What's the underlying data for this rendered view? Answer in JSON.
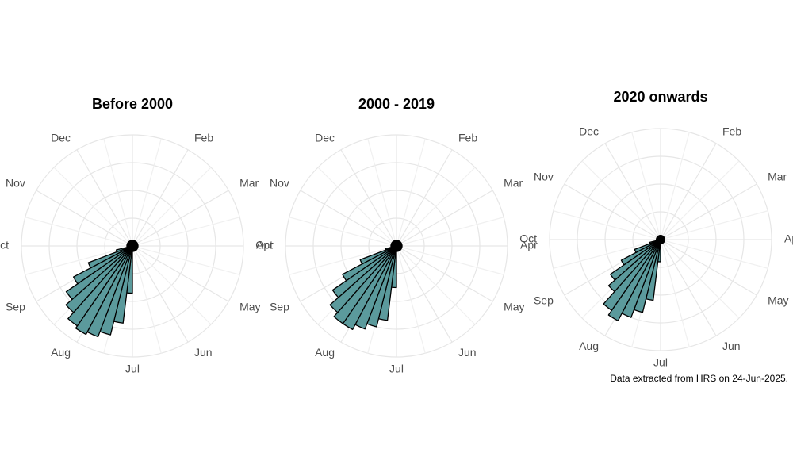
{
  "chart_data": [
    {
      "type": "polar_bar",
      "title": "Before 2000",
      "color": "#5b9a9c",
      "x": [
        1,
        2,
        3,
        4,
        5,
        6,
        7,
        8,
        9,
        10,
        11,
        12,
        13,
        14,
        15,
        16,
        17,
        18,
        19,
        20,
        21,
        22,
        23,
        24,
        25,
        26,
        27,
        28,
        29,
        30,
        31,
        32,
        33,
        34,
        35,
        36,
        37,
        38,
        39,
        40,
        41,
        42,
        43,
        44,
        45,
        46,
        47,
        48,
        49,
        50,
        51,
        52
      ],
      "values": [
        2,
        2,
        2,
        2,
        2,
        2,
        2,
        2,
        2,
        2,
        2,
        2,
        2,
        2,
        2,
        2,
        2,
        2,
        2,
        2,
        2,
        2,
        2,
        2,
        2,
        2,
        17,
        28,
        33,
        35,
        36,
        35,
        32,
        29,
        24,
        17,
        6,
        2,
        2,
        2,
        2,
        2,
        2,
        2,
        2,
        2,
        2,
        2,
        2,
        2,
        2,
        2
      ],
      "xlim": [
        0.5,
        52.5
      ],
      "ylim": [
        0,
        40
      ],
      "yticks": [
        10,
        20,
        30,
        40
      ],
      "grid": true,
      "month_labels": [
        null,
        "Feb",
        "Mar",
        "Apr",
        "May",
        "Jun",
        "Jul",
        "Aug",
        "Sep",
        "Oct",
        "Nov",
        "Dec"
      ]
    },
    {
      "type": "polar_bar",
      "title": "2000 - 2019",
      "color": "#5b9a9c",
      "x": [
        1,
        2,
        3,
        4,
        5,
        6,
        7,
        8,
        9,
        10,
        11,
        12,
        13,
        14,
        15,
        16,
        17,
        18,
        19,
        20,
        21,
        22,
        23,
        24,
        25,
        26,
        27,
        28,
        29,
        30,
        31,
        32,
        33,
        34,
        35,
        36,
        37,
        38,
        39,
        40,
        41,
        42,
        43,
        44,
        45,
        46,
        47,
        48,
        49,
        50,
        51,
        52
      ],
      "values": [
        2,
        2,
        2,
        2,
        2,
        2,
        2,
        2,
        2,
        2,
        2,
        2,
        2,
        2,
        2,
        2,
        2,
        2,
        2,
        2,
        2,
        2,
        2,
        2,
        2,
        2,
        15,
        27,
        30,
        32,
        34,
        34,
        32,
        28,
        22,
        14,
        4,
        2,
        2,
        2,
        2,
        2,
        2,
        2,
        2,
        2,
        2,
        2,
        2,
        2,
        2,
        2
      ],
      "xlim": [
        0.5,
        52.5
      ],
      "ylim": [
        0,
        40
      ],
      "yticks": [
        10,
        20,
        30,
        40
      ],
      "grid": true,
      "month_labels": [
        null,
        "Feb",
        "Mar",
        "Apr",
        "May",
        "Jun",
        "Jul",
        "Aug",
        "Sep",
        "Oct",
        "Nov",
        "Dec"
      ]
    },
    {
      "type": "polar_bar",
      "title": "2020 onwards",
      "color": "#5b9a9c",
      "caption": "Data extracted from HRS on 24-Jun-2025.",
      "x": [
        1,
        2,
        3,
        4,
        5,
        6,
        7,
        8,
        9,
        10,
        11,
        12,
        13,
        14,
        15,
        16,
        17,
        18,
        19,
        20,
        21,
        22,
        23,
        24,
        25,
        26,
        27,
        28,
        29,
        30,
        31,
        32,
        33,
        34,
        35,
        36,
        37,
        38,
        39,
        40,
        41,
        42,
        43,
        44,
        45,
        46,
        47,
        48,
        49,
        50,
        51,
        52
      ],
      "values": [
        1.5,
        1.5,
        1.5,
        1.5,
        1.5,
        1.5,
        1.5,
        1.5,
        1.5,
        1.5,
        1.5,
        1.5,
        1.5,
        1.5,
        1.5,
        1.5,
        1.5,
        1.5,
        1.5,
        1.5,
        1.5,
        1.5,
        1.5,
        1.5,
        1.5,
        1.5,
        8,
        22,
        27,
        30,
        33,
        31,
        25,
        22,
        16,
        10,
        4,
        1.5,
        1.5,
        1.5,
        1.5,
        1.5,
        1.5,
        1.5,
        1.5,
        1.5,
        1.5,
        1.5,
        1.5,
        1.5,
        1.5,
        1.5
      ],
      "xlim": [
        0.5,
        52.5
      ],
      "ylim": [
        0,
        40
      ],
      "yticks": [
        10,
        20,
        30,
        40
      ],
      "grid": true,
      "month_labels": [
        null,
        "Feb",
        "Mar",
        "Apr",
        "May",
        "Jun",
        "Jul",
        "Aug",
        "Sep",
        "Oct",
        "Nov",
        "Dec"
      ]
    }
  ]
}
